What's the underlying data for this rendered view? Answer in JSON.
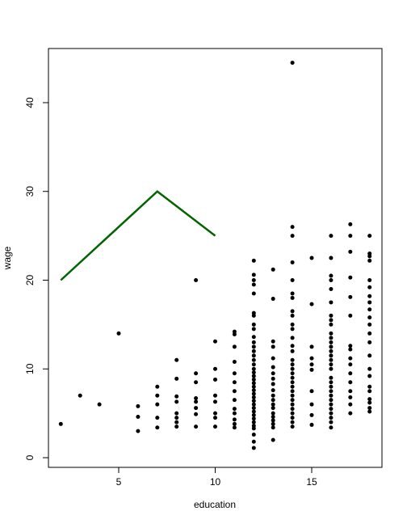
{
  "chart_data": {
    "type": "scatter",
    "x_label": "education",
    "y_label": "wage",
    "xlim": [
      1.36,
      18.64
    ],
    "ylim": [
      -1.09,
      46.1
    ],
    "xticks": [
      5,
      10,
      15
    ],
    "yticks": [
      0,
      10,
      20,
      30,
      40
    ],
    "series": [
      {
        "type": "scatter",
        "color": "#000000",
        "x": [
          2,
          3,
          4,
          5,
          6,
          6,
          6,
          7,
          7,
          7,
          7,
          7,
          8,
          8,
          8,
          8,
          8,
          8,
          8,
          8,
          9,
          9,
          9,
          9,
          9,
          9,
          9,
          9,
          10,
          10,
          10,
          10,
          10,
          10,
          10,
          10,
          11,
          11,
          11,
          11,
          11,
          11,
          11,
          11,
          11,
          11,
          11,
          11,
          11,
          12,
          12,
          12,
          12,
          12,
          12,
          12,
          12,
          12,
          12,
          12,
          12,
          12,
          12,
          12,
          12,
          12,
          12,
          12,
          12,
          12,
          12,
          12,
          12,
          12,
          12,
          12,
          12,
          12,
          12,
          12,
          12,
          12,
          12,
          12,
          12,
          12,
          13,
          13,
          13,
          13,
          13,
          13,
          13,
          13,
          13,
          13,
          13,
          13,
          13,
          13,
          13,
          13,
          13,
          13,
          13,
          13,
          14,
          14,
          14,
          14,
          14,
          14,
          14,
          14,
          14,
          14,
          14,
          14,
          14,
          14,
          14,
          14,
          14,
          14,
          14,
          14,
          14,
          14,
          14,
          14,
          14,
          14,
          14,
          14,
          14,
          14,
          15,
          15,
          15,
          15,
          15,
          15,
          15,
          15,
          15,
          15,
          16,
          16,
          16,
          16,
          16,
          16,
          16,
          16,
          16,
          16,
          16,
          16,
          16,
          16,
          16,
          16,
          16,
          16,
          16,
          16,
          16,
          16,
          16,
          16,
          16,
          16,
          16,
          16,
          16,
          16,
          17,
          17,
          17,
          17,
          17,
          17,
          17,
          17,
          17,
          17,
          17,
          17,
          17,
          17,
          17,
          17,
          18,
          18,
          18,
          18,
          18,
          18,
          18,
          18,
          18,
          18,
          18,
          18,
          18,
          18,
          18,
          18,
          18,
          18,
          18,
          18,
          18,
          18
        ],
        "values": [
          3.8,
          7,
          6,
          14,
          3,
          4.6,
          5.8,
          3.4,
          4.5,
          6,
          7,
          8,
          3.5,
          4,
          4.5,
          5,
          6.3,
          6.9,
          8.9,
          11,
          3.5,
          4.9,
          5.6,
          6.3,
          6.7,
          8.5,
          9.5,
          20,
          3.5,
          4.5,
          5,
          6.3,
          7,
          8.8,
          10,
          13.1,
          3.4,
          3.8,
          4.3,
          5,
          5.5,
          6.5,
          7.5,
          8.5,
          9.5,
          10.8,
          12.5,
          13.9,
          14.2,
          1.1,
          1.8,
          2.6,
          3.3,
          3.6,
          4,
          4.4,
          4.8,
          5.2,
          5.6,
          6,
          6.4,
          6.8,
          7.2,
          7.6,
          8,
          8.4,
          8.8,
          9.2,
          9.6,
          10,
          10.5,
          11,
          11.5,
          12,
          12.5,
          13,
          13.6,
          14.5,
          15,
          16,
          16.3,
          18.5,
          19.5,
          20,
          20.6,
          22.2,
          2,
          3.4,
          3.8,
          4.2,
          4.6,
          5,
          5.6,
          6,
          6.5,
          7,
          7.6,
          8.3,
          8.9,
          9.5,
          10.2,
          11.2,
          12.5,
          13.1,
          17.9,
          21.2,
          3.5,
          4,
          4.5,
          5,
          5.5,
          6,
          6.5,
          7,
          7.5,
          8,
          8.5,
          9,
          9.5,
          10,
          10.5,
          11,
          12,
          12.6,
          13.5,
          14.5,
          15,
          16,
          16.5,
          18,
          18.5,
          20,
          22,
          25,
          26,
          44.5,
          3.7,
          4.8,
          6,
          7.5,
          9.9,
          10.5,
          11.2,
          12.5,
          17.3,
          22.5,
          3.4,
          4,
          4.5,
          5,
          5.5,
          6,
          6.5,
          7,
          7.5,
          8,
          8.5,
          9,
          10,
          10.5,
          11,
          11.5,
          12,
          12.5,
          13,
          13.5,
          14,
          15,
          15.5,
          16,
          17.5,
          19,
          20,
          20.5,
          22.5,
          25,
          5,
          6,
          6.8,
          7.5,
          8.5,
          9.5,
          10.5,
          11.2,
          12.2,
          12.6,
          16,
          18.1,
          20.3,
          23.2,
          25,
          26.3,
          5.2,
          5.6,
          6.2,
          6.6,
          7.5,
          8,
          9.2,
          10,
          11.5,
          13,
          14,
          15,
          15.8,
          16.7,
          17.5,
          18.2,
          19.2,
          20,
          22.2,
          22.7,
          23,
          25
        ]
      },
      {
        "type": "line",
        "color": "#006400",
        "x": [
          2,
          7,
          10
        ],
        "values": [
          20,
          30,
          25
        ]
      }
    ]
  }
}
